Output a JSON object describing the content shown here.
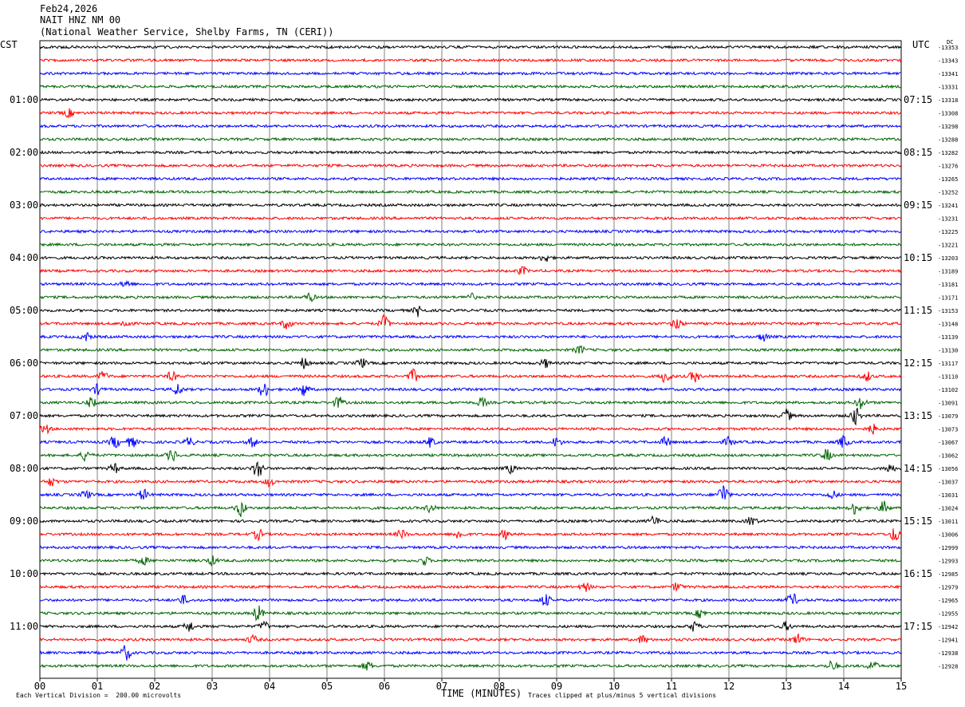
{
  "header": {
    "date": "Feb24,2026",
    "station": "NAIT HNZ NM 00",
    "network": "(National Weather Service, Shelby Farms, TN (CERI))"
  },
  "left_axis_label": "CST",
  "right_axis_label": "UTC",
  "dc_label": "DC",
  "footer": {
    "scale_note": "Each Vertical Division =  200.00 microvolts",
    "clip_note": "Traces clipped at plus/minus 5 vertical divisions"
  },
  "colors": {
    "trace_cycle": [
      "#000000",
      "#ff0000",
      "#0000ff",
      "#006400"
    ],
    "grid": "#000000"
  },
  "chart_data": {
    "type": "line",
    "title": "NAIT HNZ NM 00",
    "xlabel": "TIME (MINUTES)",
    "ylabel": "",
    "xlim": [
      0,
      15
    ],
    "x_ticks": [
      "00",
      "01",
      "02",
      "03",
      "04",
      "05",
      "06",
      "07",
      "08",
      "09",
      "10",
      "11",
      "12",
      "13",
      "14",
      "15"
    ],
    "left_hour_labels": [
      "01:00",
      "02:00",
      "03:00",
      "04:00",
      "05:00",
      "06:00",
      "07:00",
      "08:00",
      "09:00",
      "10:00",
      "11:00"
    ],
    "right_hour_labels": [
      "07:15",
      "08:15",
      "09:15",
      "10:15",
      "11:15",
      "12:15",
      "13:15",
      "14:15",
      "15:15",
      "16:15",
      "17:15"
    ],
    "dc_offsets": [
      "-13353",
      "-13343",
      "-13341",
      "-13331",
      "-13318",
      "-13308",
      "-13298",
      "-13288",
      "-13282",
      "-13276",
      "-13265",
      "-13252",
      "-13241",
      "-13231",
      "-13225",
      "-13221",
      "-13203",
      "-13189",
      "-13181",
      "-13171",
      "-13153",
      "-13148",
      "-13139",
      "-13130",
      "-13117",
      "-13110",
      "-13102",
      "-13091",
      "-13079",
      "-13073",
      "-13067",
      "-13062",
      "-13056",
      "-13037",
      "-13031",
      "-13024",
      "-13011",
      "-13006",
      "-12999",
      "-12993",
      "-12985",
      "-12979",
      "-12965",
      "-12955",
      "-12942",
      "-12941",
      "-12938",
      "-12928"
    ],
    "trace_count": 48,
    "trace_interval_minutes": 15,
    "bursts": [
      {
        "trace": 5,
        "minute": 0.5,
        "amp": 1.5
      },
      {
        "trace": 16,
        "minute": 8.8,
        "amp": 1.5
      },
      {
        "trace": 17,
        "minute": 8.4,
        "amp": 1.5
      },
      {
        "trace": 18,
        "minute": 1.5,
        "amp": 1.4
      },
      {
        "trace": 19,
        "minute": 4.7,
        "amp": 1.5
      },
      {
        "trace": 19,
        "minute": 7.5,
        "amp": 1.4
      },
      {
        "trace": 20,
        "minute": 6.6,
        "amp": 2.2
      },
      {
        "trace": 21,
        "minute": 1.5,
        "amp": 1.6
      },
      {
        "trace": 21,
        "minute": 4.3,
        "amp": 2.0
      },
      {
        "trace": 21,
        "minute": 6.0,
        "amp": 3.0
      },
      {
        "trace": 21,
        "minute": 11.1,
        "amp": 2.2
      },
      {
        "trace": 22,
        "minute": 0.8,
        "amp": 1.6
      },
      {
        "trace": 22,
        "minute": 12.6,
        "amp": 1.6
      },
      {
        "trace": 23,
        "minute": 9.4,
        "amp": 1.6
      },
      {
        "trace": 24,
        "minute": 4.6,
        "amp": 2.0
      },
      {
        "trace": 24,
        "minute": 5.6,
        "amp": 1.8
      },
      {
        "trace": 24,
        "minute": 8.8,
        "amp": 1.6
      },
      {
        "trace": 25,
        "minute": 1.1,
        "amp": 1.8
      },
      {
        "trace": 25,
        "minute": 2.3,
        "amp": 1.8
      },
      {
        "trace": 25,
        "minute": 6.5,
        "amp": 2.4
      },
      {
        "trace": 25,
        "minute": 10.9,
        "amp": 2.6
      },
      {
        "trace": 25,
        "minute": 11.4,
        "amp": 2.2
      },
      {
        "trace": 25,
        "minute": 14.4,
        "amp": 1.8
      },
      {
        "trace": 26,
        "minute": 1.0,
        "amp": 1.8
      },
      {
        "trace": 26,
        "minute": 2.4,
        "amp": 2.2
      },
      {
        "trace": 26,
        "minute": 3.9,
        "amp": 3.0
      },
      {
        "trace": 26,
        "minute": 4.6,
        "amp": 2.6
      },
      {
        "trace": 27,
        "minute": 0.9,
        "amp": 1.8
      },
      {
        "trace": 27,
        "minute": 5.2,
        "amp": 2.2
      },
      {
        "trace": 27,
        "minute": 7.7,
        "amp": 1.8
      },
      {
        "trace": 27,
        "minute": 14.3,
        "amp": 2.4
      },
      {
        "trace": 28,
        "minute": 13.0,
        "amp": 2.4
      },
      {
        "trace": 28,
        "minute": 14.2,
        "amp": 3.2
      },
      {
        "trace": 29,
        "minute": 0.1,
        "amp": 1.6
      },
      {
        "trace": 29,
        "minute": 14.5,
        "amp": 1.8
      },
      {
        "trace": 30,
        "minute": 1.3,
        "amp": 2.4
      },
      {
        "trace": 30,
        "minute": 1.6,
        "amp": 2.0
      },
      {
        "trace": 30,
        "minute": 2.6,
        "amp": 1.8
      },
      {
        "trace": 30,
        "minute": 3.7,
        "amp": 1.8
      },
      {
        "trace": 30,
        "minute": 6.8,
        "amp": 1.8
      },
      {
        "trace": 30,
        "minute": 9.0,
        "amp": 1.8
      },
      {
        "trace": 30,
        "minute": 10.9,
        "amp": 1.8
      },
      {
        "trace": 30,
        "minute": 12.0,
        "amp": 1.8
      },
      {
        "trace": 30,
        "minute": 14.0,
        "amp": 2.4
      },
      {
        "trace": 31,
        "minute": 0.8,
        "amp": 2.2
      },
      {
        "trace": 31,
        "minute": 2.3,
        "amp": 2.4
      },
      {
        "trace": 31,
        "minute": 13.7,
        "amp": 2.2
      },
      {
        "trace": 32,
        "minute": 1.3,
        "amp": 1.8
      },
      {
        "trace": 32,
        "minute": 3.8,
        "amp": 4.0
      },
      {
        "trace": 32,
        "minute": 8.2,
        "amp": 1.6
      },
      {
        "trace": 32,
        "minute": 14.8,
        "amp": 1.8
      },
      {
        "trace": 33,
        "minute": 0.2,
        "amp": 1.6
      },
      {
        "trace": 33,
        "minute": 4.0,
        "amp": 1.6
      },
      {
        "trace": 34,
        "minute": 0.8,
        "amp": 1.6
      },
      {
        "trace": 34,
        "minute": 1.8,
        "amp": 2.0
      },
      {
        "trace": 34,
        "minute": 11.9,
        "amp": 4.5
      },
      {
        "trace": 34,
        "minute": 13.8,
        "amp": 1.6
      },
      {
        "trace": 35,
        "minute": 3.5,
        "amp": 3.2
      },
      {
        "trace": 35,
        "minute": 6.8,
        "amp": 1.6
      },
      {
        "trace": 35,
        "minute": 14.2,
        "amp": 2.4
      },
      {
        "trace": 35,
        "minute": 14.7,
        "amp": 2.4
      },
      {
        "trace": 36,
        "minute": 10.7,
        "amp": 1.8
      },
      {
        "trace": 36,
        "minute": 12.4,
        "amp": 1.8
      },
      {
        "trace": 37,
        "minute": 3.8,
        "amp": 2.0
      },
      {
        "trace": 37,
        "minute": 6.3,
        "amp": 1.6
      },
      {
        "trace": 37,
        "minute": 7.3,
        "amp": 1.8
      },
      {
        "trace": 37,
        "minute": 8.1,
        "amp": 1.6
      },
      {
        "trace": 37,
        "minute": 14.9,
        "amp": 3.0
      },
      {
        "trace": 39,
        "minute": 1.8,
        "amp": 1.6
      },
      {
        "trace": 39,
        "minute": 3.0,
        "amp": 1.6
      },
      {
        "trace": 39,
        "minute": 6.7,
        "amp": 1.6
      },
      {
        "trace": 41,
        "minute": 9.5,
        "amp": 1.6
      },
      {
        "trace": 41,
        "minute": 11.1,
        "amp": 1.6
      },
      {
        "trace": 42,
        "minute": 2.5,
        "amp": 1.6
      },
      {
        "trace": 42,
        "minute": 8.8,
        "amp": 2.4
      },
      {
        "trace": 42,
        "minute": 13.1,
        "amp": 2.6
      },
      {
        "trace": 43,
        "minute": 3.8,
        "amp": 3.0
      },
      {
        "trace": 43,
        "minute": 11.5,
        "amp": 1.6
      },
      {
        "trace": 44,
        "minute": 2.6,
        "amp": 2.0
      },
      {
        "trace": 44,
        "minute": 3.9,
        "amp": 1.8
      },
      {
        "trace": 44,
        "minute": 11.4,
        "amp": 1.8
      },
      {
        "trace": 44,
        "minute": 13.0,
        "amp": 1.6
      },
      {
        "trace": 45,
        "minute": 3.7,
        "amp": 1.6
      },
      {
        "trace": 45,
        "minute": 10.5,
        "amp": 1.6
      },
      {
        "trace": 45,
        "minute": 13.2,
        "amp": 2.0
      },
      {
        "trace": 46,
        "minute": 1.5,
        "amp": 3.0
      },
      {
        "trace": 47,
        "minute": 5.7,
        "amp": 1.6
      },
      {
        "trace": 47,
        "minute": 13.8,
        "amp": 2.0
      },
      {
        "trace": 47,
        "minute": 14.5,
        "amp": 2.0
      }
    ]
  }
}
